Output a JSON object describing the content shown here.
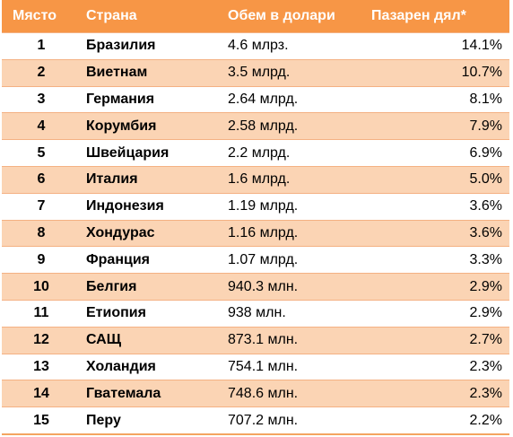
{
  "table": {
    "headers": [
      "Място",
      "Страна",
      "Обем в долари",
      "Пазарен дял*"
    ],
    "rows": [
      [
        "1",
        "Бразилия",
        "4.6 млрз.",
        "14.1%"
      ],
      [
        "2",
        "Виетнам",
        "3.5 млрд.",
        "10.7%"
      ],
      [
        "3",
        "Германия",
        "2.64 млрд.",
        "8.1%"
      ],
      [
        "4",
        "Корумбия",
        "2.58 млрд.",
        "7.9%"
      ],
      [
        "5",
        "Швейцария",
        "2.2 млрд.",
        "6.9%"
      ],
      [
        "6",
        "Италия",
        "1.6 млрд.",
        "5.0%"
      ],
      [
        "7",
        "Индонезия",
        "1.19 млрд.",
        "3.6%"
      ],
      [
        "8",
        "Хондурас",
        "1.16 млрд.",
        "3.6%"
      ],
      [
        "9",
        "Франция",
        "1.07 млрд.",
        "3.3%"
      ],
      [
        "10",
        "Белгия",
        "940.3 млн.",
        "2.9%"
      ],
      [
        "11",
        "Етиопия",
        "938 млн.",
        "2.9%"
      ],
      [
        "12",
        "САЩ",
        "873.1 млн.",
        "2.7%"
      ],
      [
        "13",
        "Холандия",
        "754.1 млн.",
        "2.3%"
      ],
      [
        "14",
        "Гватемала",
        "748.6 млн.",
        "2.3%"
      ],
      [
        "15",
        "Перу",
        "707.2 млн.",
        "2.2%"
      ]
    ]
  },
  "colors": {
    "header": "#f79646",
    "band": "#fbd4b4",
    "plain": "#ffffff"
  }
}
